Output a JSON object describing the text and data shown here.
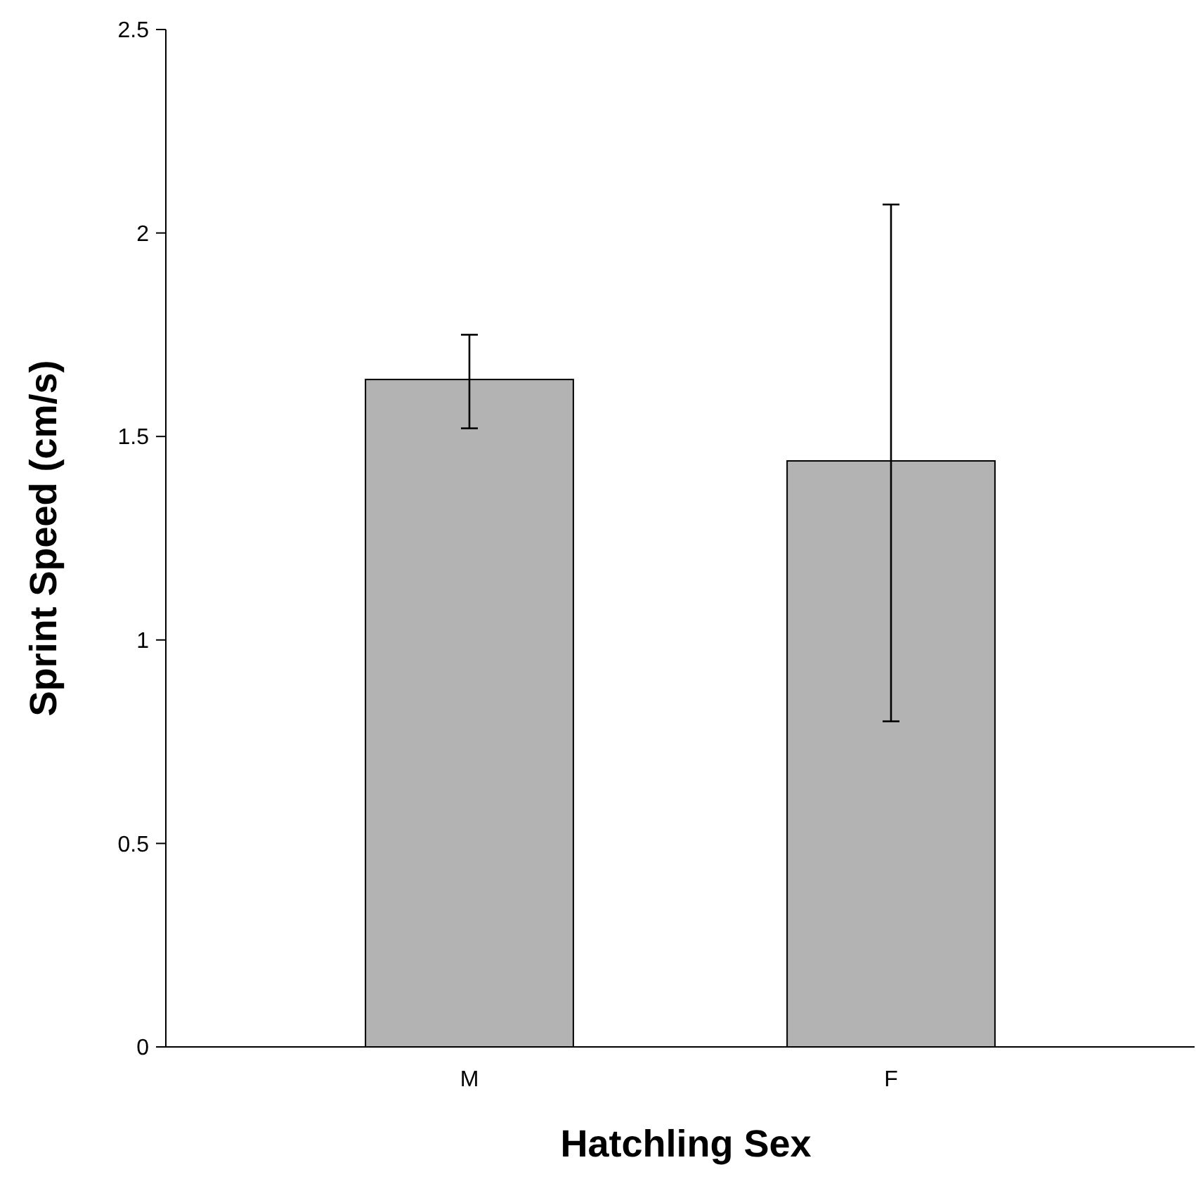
{
  "chart_data": {
    "type": "bar",
    "xlabel": "Hatchling Sex",
    "ylabel": "Sprint Speed (cm/s)",
    "categories": [
      "M",
      "F"
    ],
    "values": [
      1.64,
      1.44
    ],
    "color": "#b3b3b3",
    "errors": [
      [
        1.52,
        1.75
      ],
      [
        0.8,
        2.07
      ]
    ],
    "ylim": [
      0,
      2.5
    ],
    "yticks": [
      {
        "value": 0,
        "label": "0"
      },
      {
        "value": 0.5,
        "label": "0.5"
      },
      {
        "value": 1,
        "label": "1"
      },
      {
        "value": 1.5,
        "label": "1.5"
      },
      {
        "value": 2,
        "label": "2"
      },
      {
        "value": 2.5,
        "label": "2.5"
      }
    ],
    "grid": false
  }
}
